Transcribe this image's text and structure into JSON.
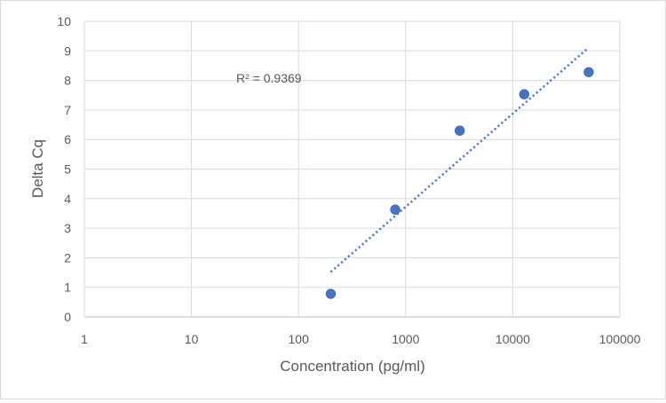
{
  "chart_data": {
    "type": "scatter",
    "title": "",
    "xlabel": "Concentration (pg/ml)",
    "ylabel": "Delta Cq",
    "x_scale": "log",
    "xlim": [
      1,
      100000
    ],
    "ylim": [
      0,
      10
    ],
    "x_ticks": [
      "1",
      "10",
      "100",
      "1000",
      "10000",
      "100000"
    ],
    "y_ticks": [
      "0",
      "1",
      "2",
      "3",
      "4",
      "5",
      "6",
      "7",
      "8",
      "9",
      "10"
    ],
    "grid": true,
    "legend": "none",
    "marker_color": "#4472c4",
    "trendline": {
      "type": "log",
      "style": "dotted",
      "color": "#4472c4",
      "x_range": [
        200,
        50000
      ],
      "y_range": [
        1.52,
        9.08
      ]
    },
    "annotation": "R² = 0.9369",
    "series": [
      {
        "x": [
          200,
          800,
          3200,
          12800,
          51200
        ],
        "y": [
          0.78,
          3.63,
          6.3,
          7.53,
          8.28
        ]
      }
    ]
  }
}
